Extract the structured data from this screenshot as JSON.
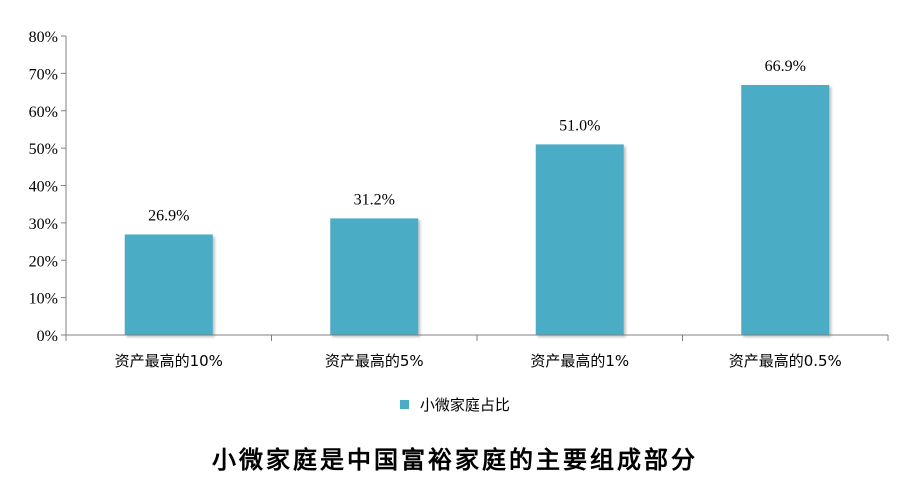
{
  "chart_data": {
    "type": "bar",
    "categories": [
      "资产最高的10%",
      "资产最高的5%",
      "资产最高的1%",
      "资产最高的0.5%"
    ],
    "series": [
      {
        "name": "小微家庭占比",
        "values": [
          26.9,
          31.2,
          51.0,
          66.9
        ]
      }
    ],
    "data_labels": [
      "26.9%",
      "31.2%",
      "51.0%",
      "66.9%"
    ],
    "y_ticks": [
      "0%",
      "10%",
      "20%",
      "30%",
      "40%",
      "50%",
      "60%",
      "70%",
      "80%"
    ],
    "ylim": [
      0,
      80
    ],
    "y_unit": "%",
    "grid": false,
    "legend_position": "bottom",
    "bar_color": "#4bacc6",
    "title": ""
  },
  "caption": "小微家庭是中国富裕家庭的主要组成部分"
}
